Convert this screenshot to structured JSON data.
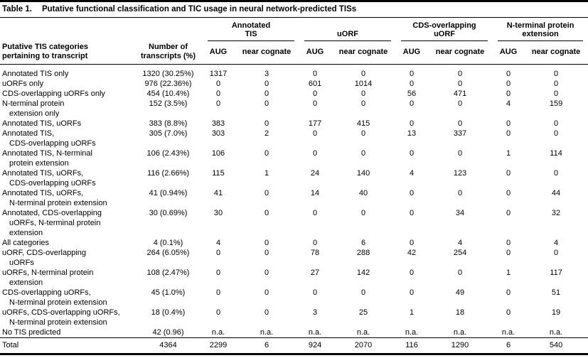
{
  "caption": {
    "label": "Table 1.",
    "title": "Putative functional classification and TIC usage in neural network-predicted TISs"
  },
  "headers": {
    "category": "Putative TIS categories\npertaining to transcript",
    "transcripts": "Number of\ntranscripts (%)",
    "groups": [
      {
        "name": "Annotated\nTIS",
        "subs": [
          "AUG",
          "near cognate"
        ]
      },
      {
        "name": "uORF",
        "subs": [
          "AUG",
          "near cognate"
        ]
      },
      {
        "name": "CDS-overlapping\nuORF",
        "subs": [
          "AUG",
          "near cognate"
        ]
      },
      {
        "name": "N-terminal protein\nextension",
        "subs": [
          "AUG",
          "near cognate"
        ]
      }
    ]
  },
  "rows": [
    {
      "category": "Annotated TIS only",
      "transcripts": "1320 (30.25%)",
      "values": [
        "1317",
        "3",
        "0",
        "0",
        "0",
        "0",
        "0",
        "0"
      ]
    },
    {
      "category": "uORFs only",
      "transcripts": "976 (22.36%)",
      "values": [
        "0",
        "0",
        "601",
        "1014",
        "0",
        "0",
        "0",
        "0"
      ]
    },
    {
      "category": "CDS-overlapping uORFs only",
      "transcripts": "454 (10.4%)",
      "values": [
        "0",
        "0",
        "0",
        "0",
        "56",
        "471",
        "0",
        "0"
      ]
    },
    {
      "category": "N-terminal protein\nextension only",
      "transcripts": "152 (3.5%)",
      "values": [
        "0",
        "0",
        "0",
        "0",
        "0",
        "0",
        "4",
        "159"
      ]
    },
    {
      "category": "Annotated TIS, uORFs",
      "transcripts": "383 (8.8%)",
      "values": [
        "383",
        "0",
        "177",
        "415",
        "0",
        "0",
        "0",
        "0"
      ]
    },
    {
      "category": "Annotated TIS,\nCDS-overlapping uORFs",
      "transcripts": "305 (7.0%)",
      "values": [
        "303",
        "2",
        "0",
        "0",
        "13",
        "337",
        "0",
        "0"
      ]
    },
    {
      "category": "Annotated TIS, N-terminal\nprotein extension",
      "transcripts": "106 (2.43%)",
      "values": [
        "106",
        "0",
        "0",
        "0",
        "0",
        "0",
        "1",
        "114"
      ]
    },
    {
      "category": "Annotated TIS, uORFs,\nCDS-overlapping uORFs",
      "transcripts": "116 (2.66%)",
      "values": [
        "115",
        "1",
        "24",
        "140",
        "4",
        "123",
        "0",
        "0"
      ]
    },
    {
      "category": "Annotated TIS, uORFs,\nN-terminal protein extension",
      "transcripts": "41 (0.94%)",
      "values": [
        "41",
        "0",
        "14",
        "40",
        "0",
        "0",
        "0",
        "44"
      ]
    },
    {
      "category": "Annotated, CDS-overlapping\nuORFs, N-terminal protein\nextension",
      "transcripts": "30 (0.69%)",
      "values": [
        "30",
        "0",
        "0",
        "0",
        "0",
        "34",
        "0",
        "32"
      ]
    },
    {
      "category": "All categories",
      "transcripts": "4 (0.1%)",
      "values": [
        "4",
        "0",
        "0",
        "6",
        "0",
        "4",
        "0",
        "4"
      ]
    },
    {
      "category": "uORF, CDS-overlapping\nuORFs",
      "transcripts": "264 (6.05%)",
      "values": [
        "0",
        "0",
        "78",
        "288",
        "42",
        "254",
        "0",
        "0"
      ]
    },
    {
      "category": "uORFs, N-terminal protein\nextension",
      "transcripts": "108 (2.47%)",
      "values": [
        "0",
        "0",
        "27",
        "142",
        "0",
        "0",
        "1",
        "117"
      ]
    },
    {
      "category": "CDS-overlapping uORFs,\nN-terminal protein extension",
      "transcripts": "45 (1.0%)",
      "values": [
        "0",
        "0",
        "0",
        "0",
        "0",
        "49",
        "0",
        "51"
      ]
    },
    {
      "category": "uORFs, CDS-overlapping uORFs,\nN-terminal protein extension",
      "transcripts": "18 (0.4%)",
      "values": [
        "0",
        "0",
        "3",
        "25",
        "1",
        "18",
        "0",
        "19"
      ]
    },
    {
      "category": "No TIS predicted",
      "transcripts": "42 (0.96)",
      "values": [
        "n.a.",
        "n.a.",
        "n.a.",
        "n.a.",
        "n.a.",
        "n.a.",
        "n.a.",
        "n.a."
      ]
    },
    {
      "category": "Total",
      "transcripts": "4364",
      "values": [
        "2299",
        "6",
        "924",
        "2070",
        "116",
        "1290",
        "6",
        "540"
      ]
    }
  ]
}
